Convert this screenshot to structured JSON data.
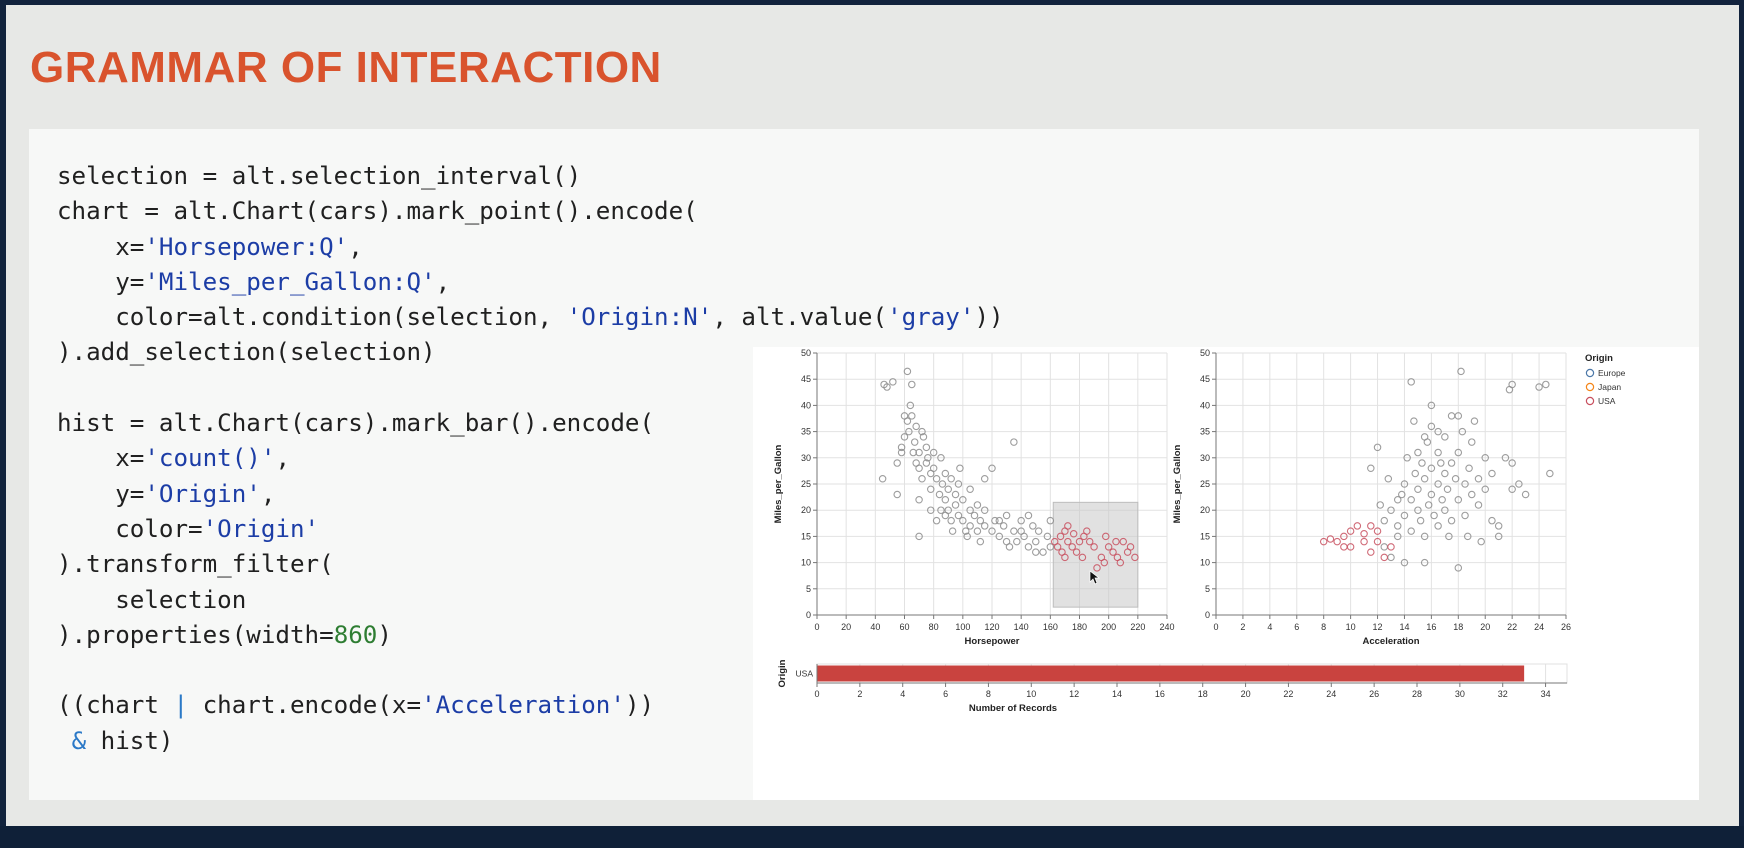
{
  "slide": {
    "title": "GRAMMAR OF INTERACTION",
    "code": [
      [
        "selection = alt.selection_interval()"
      ],
      [
        "chart = alt.Chart(cars).mark_point().encode("
      ],
      [
        "    x=",
        "'Horsepower:Q'",
        ","
      ],
      [
        "    y=",
        "'Miles_per_Gallon:Q'",
        ","
      ],
      [
        "    color=alt.condition(selection, ",
        "'Origin:N'",
        ", alt.value(",
        "'gray'",
        "))"
      ],
      [
        ").add_selection(selection)"
      ],
      [
        ""
      ],
      [
        "hist = alt.Chart(cars).mark_bar().encode("
      ],
      [
        "    x=",
        "'count()'",
        ","
      ],
      [
        "    y=",
        "'Origin'",
        ","
      ],
      [
        "    color=",
        "'Origin'"
      ],
      [
        ").transform_filter("
      ],
      [
        "    selection"
      ],
      [
        ").properties(width=",
        "860",
        ")"
      ],
      [
        ""
      ],
      [
        "((chart ",
        "|",
        " chart.encode(x=",
        "'Acceleration'",
        "))"
      ],
      [
        " ",
        "&",
        " hist)"
      ]
    ]
  },
  "legend": {
    "title": "Origin",
    "items": [
      {
        "label": "Europe",
        "color": "#4c78a8"
      },
      {
        "label": "Japan",
        "color": "#f58518"
      },
      {
        "label": "USA",
        "color": "#c8505f"
      }
    ]
  },
  "colors": {
    "gray": "#8c8c8c",
    "usa": "#c8505f",
    "bar": "#c9433f",
    "selection": "#c8c8c8"
  },
  "chart_data": [
    {
      "type": "scatter",
      "xlabel": "Horsepower",
      "ylabel": "Miles_per_Gallon",
      "xlim": [
        0,
        240
      ],
      "ylim": [
        0,
        50
      ],
      "xticks": [
        0,
        20,
        40,
        60,
        80,
        100,
        120,
        140,
        160,
        180,
        200,
        220,
        240
      ],
      "yticks": [
        0,
        5,
        10,
        15,
        20,
        25,
        30,
        35,
        40,
        45,
        50
      ],
      "selection": {
        "x": [
          162,
          220
        ],
        "y": [
          1.5,
          21.5
        ]
      },
      "series": [
        {
          "name": "gray",
          "points": [
            [
              46,
              44
            ],
            [
              48,
              43.5
            ],
            [
              52,
              44.5
            ],
            [
              62,
              46.5
            ],
            [
              65,
              44
            ],
            [
              45,
              26
            ],
            [
              55,
              29
            ],
            [
              58,
              32
            ],
            [
              60,
              34
            ],
            [
              62,
              37
            ],
            [
              63,
              35
            ],
            [
              65,
              38
            ],
            [
              66,
              31
            ],
            [
              67,
              33
            ],
            [
              68,
              36
            ],
            [
              70,
              28
            ],
            [
              70,
              31
            ],
            [
              72,
              35
            ],
            [
              72,
              26
            ],
            [
              75,
              29
            ],
            [
              75,
              32
            ],
            [
              76,
              30
            ],
            [
              78,
              27
            ],
            [
              78,
              24
            ],
            [
              80,
              31
            ],
            [
              80,
              28
            ],
            [
              82,
              26
            ],
            [
              84,
              23
            ],
            [
              85,
              30
            ],
            [
              85,
              20
            ],
            [
              86,
              25
            ],
            [
              88,
              27
            ],
            [
              88,
              22
            ],
            [
              90,
              24
            ],
            [
              90,
              20
            ],
            [
              92,
              26
            ],
            [
              92,
              18
            ],
            [
              95,
              23
            ],
            [
              95,
              21
            ],
            [
              97,
              19
            ],
            [
              97,
              25
            ],
            [
              100,
              18
            ],
            [
              100,
              22
            ],
            [
              102,
              16
            ],
            [
              105,
              20
            ],
            [
              105,
              17
            ],
            [
              108,
              19
            ],
            [
              110,
              21
            ],
            [
              110,
              16
            ],
            [
              112,
              18
            ],
            [
              115,
              20
            ],
            [
              115,
              17
            ],
            [
              120,
              16
            ],
            [
              122,
              18
            ],
            [
              125,
              15
            ],
            [
              128,
              17
            ],
            [
              130,
              19
            ],
            [
              132,
              13
            ],
            [
              135,
              16
            ],
            [
              137,
              14
            ],
            [
              140,
              16
            ],
            [
              140,
              18
            ],
            [
              142,
              15
            ],
            [
              145,
              13
            ],
            [
              145,
              19
            ],
            [
              148,
              17
            ],
            [
              150,
              14
            ],
            [
              152,
              16
            ],
            [
              155,
              12
            ],
            [
              158,
              15
            ],
            [
              160,
              13
            ],
            [
              160,
              18
            ],
            [
              135,
              33
            ],
            [
              120,
              28
            ],
            [
              115,
              26
            ],
            [
              105,
              24
            ],
            [
              98,
              28
            ],
            [
              68,
              29
            ],
            [
              58,
              31
            ],
            [
              73,
              34
            ],
            [
              64,
              40
            ],
            [
              60,
              38
            ],
            [
              70,
              22
            ],
            [
              88,
              19
            ],
            [
              93,
              16
            ],
            [
              78,
              20
            ],
            [
              82,
              18
            ],
            [
              103,
              15
            ],
            [
              112,
              14
            ],
            [
              125,
              18
            ],
            [
              130,
              14
            ],
            [
              150,
              12
            ],
            [
              70,
              15
            ],
            [
              55,
              23
            ]
          ]
        },
        {
          "name": "USA",
          "points": [
            [
              163,
              14
            ],
            [
              165,
              13
            ],
            [
              167,
              15
            ],
            [
              168,
              12
            ],
            [
              170,
              16
            ],
            [
              172,
              14
            ],
            [
              175,
              13
            ],
            [
              176,
              15.5
            ],
            [
              178,
              12
            ],
            [
              180,
              14
            ],
            [
              182,
              11
            ],
            [
              185,
              16
            ],
            [
              187,
              14
            ],
            [
              190,
              13
            ],
            [
              192,
              9
            ],
            [
              195,
              11
            ],
            [
              197,
              10
            ],
            [
              200,
              13
            ],
            [
              203,
              12
            ],
            [
              206,
              11
            ],
            [
              208,
              10
            ],
            [
              210,
              14
            ],
            [
              213,
              12
            ],
            [
              215,
              13
            ],
            [
              218,
              11
            ],
            [
              170,
              11
            ],
            [
              183,
              15
            ],
            [
              198,
              15
            ],
            [
              205,
              14
            ],
            [
              172,
              17
            ]
          ]
        }
      ]
    },
    {
      "type": "scatter",
      "xlabel": "Acceleration",
      "ylabel": "Miles_per_Gallon",
      "xlim": [
        0,
        26
      ],
      "ylim": [
        0,
        50
      ],
      "xticks": [
        0,
        2,
        4,
        6,
        8,
        10,
        12,
        14,
        16,
        18,
        20,
        22,
        24,
        26
      ],
      "yticks": [
        0,
        5,
        10,
        15,
        20,
        25,
        30,
        35,
        40,
        45,
        50
      ],
      "series": [
        {
          "name": "gray",
          "points": [
            [
              12.5,
              18
            ],
            [
              13,
              20
            ],
            [
              13.5,
              17
            ],
            [
              13.5,
              22
            ],
            [
              14,
              19
            ],
            [
              14,
              25
            ],
            [
              14.2,
              30
            ],
            [
              14.5,
              16
            ],
            [
              14.5,
              22
            ],
            [
              14.8,
              27
            ],
            [
              15,
              20
            ],
            [
              15,
              24
            ],
            [
              15,
              31
            ],
            [
              15.2,
              18
            ],
            [
              15.5,
              26
            ],
            [
              15.5,
              34
            ],
            [
              15.5,
              15
            ],
            [
              15.8,
              21
            ],
            [
              16,
              23
            ],
            [
              16,
              28
            ],
            [
              16,
              36
            ],
            [
              16.2,
              19
            ],
            [
              16.5,
              25
            ],
            [
              16.5,
              31
            ],
            [
              16.5,
              17
            ],
            [
              16.8,
              22
            ],
            [
              17,
              27
            ],
            [
              17,
              34
            ],
            [
              17,
              20
            ],
            [
              17.2,
              24
            ],
            [
              17.5,
              29
            ],
            [
              17.5,
              18
            ],
            [
              17.8,
              26
            ],
            [
              18,
              22
            ],
            [
              18,
              31
            ],
            [
              18,
              38
            ],
            [
              18.2,
              46.5
            ],
            [
              18.5,
              25
            ],
            [
              18.5,
              19
            ],
            [
              18.8,
              28
            ],
            [
              19,
              23
            ],
            [
              19,
              33
            ],
            [
              19.5,
              26
            ],
            [
              19.5,
              21
            ],
            [
              20,
              30
            ],
            [
              20,
              24
            ],
            [
              20.5,
              27
            ],
            [
              21,
              17
            ],
            [
              21,
              15
            ],
            [
              21.5,
              30
            ],
            [
              21.8,
              43
            ],
            [
              22,
              44
            ],
            [
              22,
              24
            ],
            [
              22,
              29
            ],
            [
              23,
              23
            ],
            [
              24,
              43.5
            ],
            [
              24.5,
              44
            ],
            [
              24.8,
              27
            ],
            [
              14.5,
              44.5
            ],
            [
              12,
              32
            ],
            [
              11.5,
              28
            ],
            [
              12.5,
              13
            ],
            [
              13,
              11
            ],
            [
              13.5,
              15
            ],
            [
              14,
              10
            ],
            [
              15.5,
              10
            ],
            [
              16.5,
              35
            ],
            [
              17.5,
              38
            ],
            [
              16,
              40
            ],
            [
              14.7,
              37
            ],
            [
              15.7,
              33
            ],
            [
              18.3,
              35
            ],
            [
              19.2,
              37
            ],
            [
              13.8,
              23
            ],
            [
              12.8,
              26
            ],
            [
              12.2,
              21
            ],
            [
              20.5,
              18
            ],
            [
              22.5,
              25
            ],
            [
              15.3,
              29
            ],
            [
              16.7,
              29
            ],
            [
              17.3,
              15
            ],
            [
              18.7,
              15
            ],
            [
              19.7,
              14
            ],
            [
              18,
              9
            ]
          ]
        },
        {
          "name": "USA",
          "points": [
            [
              8,
              14
            ],
            [
              8.5,
              14.5
            ],
            [
              9,
              14
            ],
            [
              9.5,
              15
            ],
            [
              10,
              16
            ],
            [
              10,
              13
            ],
            [
              11,
              14
            ],
            [
              11,
              15.5
            ],
            [
              11.5,
              12
            ],
            [
              11.5,
              17
            ],
            [
              12,
              14
            ],
            [
              12,
              16
            ],
            [
              12.5,
              11
            ],
            [
              13,
              13
            ],
            [
              10.5,
              17
            ],
            [
              9.5,
              13
            ]
          ]
        }
      ]
    },
    {
      "type": "bar",
      "orientation": "horizontal",
      "ylabel": "Origin",
      "xlabel": "Number of Records",
      "categories": [
        "USA"
      ],
      "values": [
        33
      ],
      "xlim": [
        0,
        35
      ],
      "xticks": [
        0,
        2,
        4,
        6,
        8,
        10,
        12,
        14,
        16,
        18,
        20,
        22,
        24,
        26,
        28,
        30,
        32,
        34
      ]
    }
  ]
}
